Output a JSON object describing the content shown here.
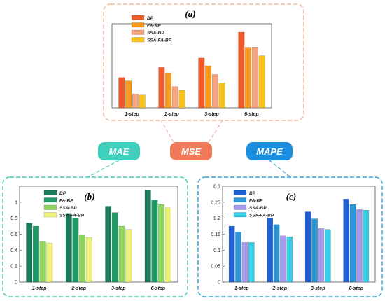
{
  "series_names": [
    "BP",
    "FA-BP",
    "SSA-BP",
    "SSA-FA-BP"
  ],
  "badges": [
    {
      "id": "mae",
      "label": "MAE",
      "color": "#3ecfbd"
    },
    {
      "id": "mse",
      "label": "MSE",
      "color": "#f07a5a"
    },
    {
      "id": "mape",
      "label": "MAPE",
      "color": "#1a8fe0"
    }
  ],
  "chart_data": [
    {
      "id": "a",
      "panel_label": "(a)",
      "metric": "MSE",
      "type": "bar",
      "categories": [
        "1-step",
        "2-step",
        "3-step",
        "6-step"
      ],
      "ylim": [
        0,
        2.5
      ],
      "yticks": [],
      "legend_position": "top-left",
      "frame_color": "#f2b8a2",
      "colors": [
        "#ee5a2c",
        "#f59a1e",
        "#f4a47e",
        "#f7c21a"
      ],
      "series": [
        {
          "name": "BP",
          "values": [
            0.9,
            1.2,
            1.48,
            2.25
          ]
        },
        {
          "name": "FA-BP",
          "values": [
            0.8,
            1.04,
            1.25,
            1.8
          ]
        },
        {
          "name": "SSA-BP",
          "values": [
            0.41,
            0.63,
            0.99,
            1.81
          ]
        },
        {
          "name": "SSA-FA-BP",
          "values": [
            0.38,
            0.52,
            0.74,
            1.55
          ]
        }
      ]
    },
    {
      "id": "b",
      "panel_label": "(b)",
      "metric": "MAE",
      "type": "bar",
      "categories": [
        "1-step",
        "2-step",
        "3-step",
        "6-step"
      ],
      "ylim": [
        0,
        1.2
      ],
      "yticks": [
        0,
        0.2,
        0.4,
        0.6,
        0.8,
        1
      ],
      "legend_position": "top-left",
      "frame_color": "#4fc9b9",
      "colors": [
        "#1a7a5a",
        "#1f9a66",
        "#8fd45c",
        "#eff27a"
      ],
      "series": [
        {
          "name": "BP",
          "values": [
            0.74,
            0.86,
            0.95,
            1.15
          ]
        },
        {
          "name": "FA-BP",
          "values": [
            0.7,
            0.8,
            0.87,
            1.03
          ]
        },
        {
          "name": "SSA-BP",
          "values": [
            0.51,
            0.59,
            0.7,
            0.97
          ]
        },
        {
          "name": "SSA-FA-BP",
          "values": [
            0.49,
            0.56,
            0.66,
            0.93
          ]
        }
      ]
    },
    {
      "id": "c",
      "panel_label": "(c)",
      "metric": "MAPE",
      "type": "bar",
      "categories": [
        "1-step",
        "2-step",
        "3-step",
        "6-step"
      ],
      "ylim": [
        0,
        0.3
      ],
      "yticks": [
        0,
        0.05,
        0.1,
        0.15,
        0.2,
        0.25,
        0.3
      ],
      "legend_position": "top-left",
      "frame_color": "#3fa6d9",
      "colors": [
        "#1f5fd6",
        "#2a96d6",
        "#a79bf0",
        "#38cfe8"
      ],
      "series": [
        {
          "name": "BP",
          "values": [
            0.175,
            0.2,
            0.22,
            0.26
          ]
        },
        {
          "name": "FA-BP",
          "values": [
            0.157,
            0.18,
            0.198,
            0.243
          ]
        },
        {
          "name": "SSA-BP",
          "values": [
            0.124,
            0.145,
            0.168,
            0.227
          ]
        },
        {
          "name": "SSA-FA-BP",
          "values": [
            0.124,
            0.142,
            0.165,
            0.225
          ]
        }
      ]
    }
  ]
}
